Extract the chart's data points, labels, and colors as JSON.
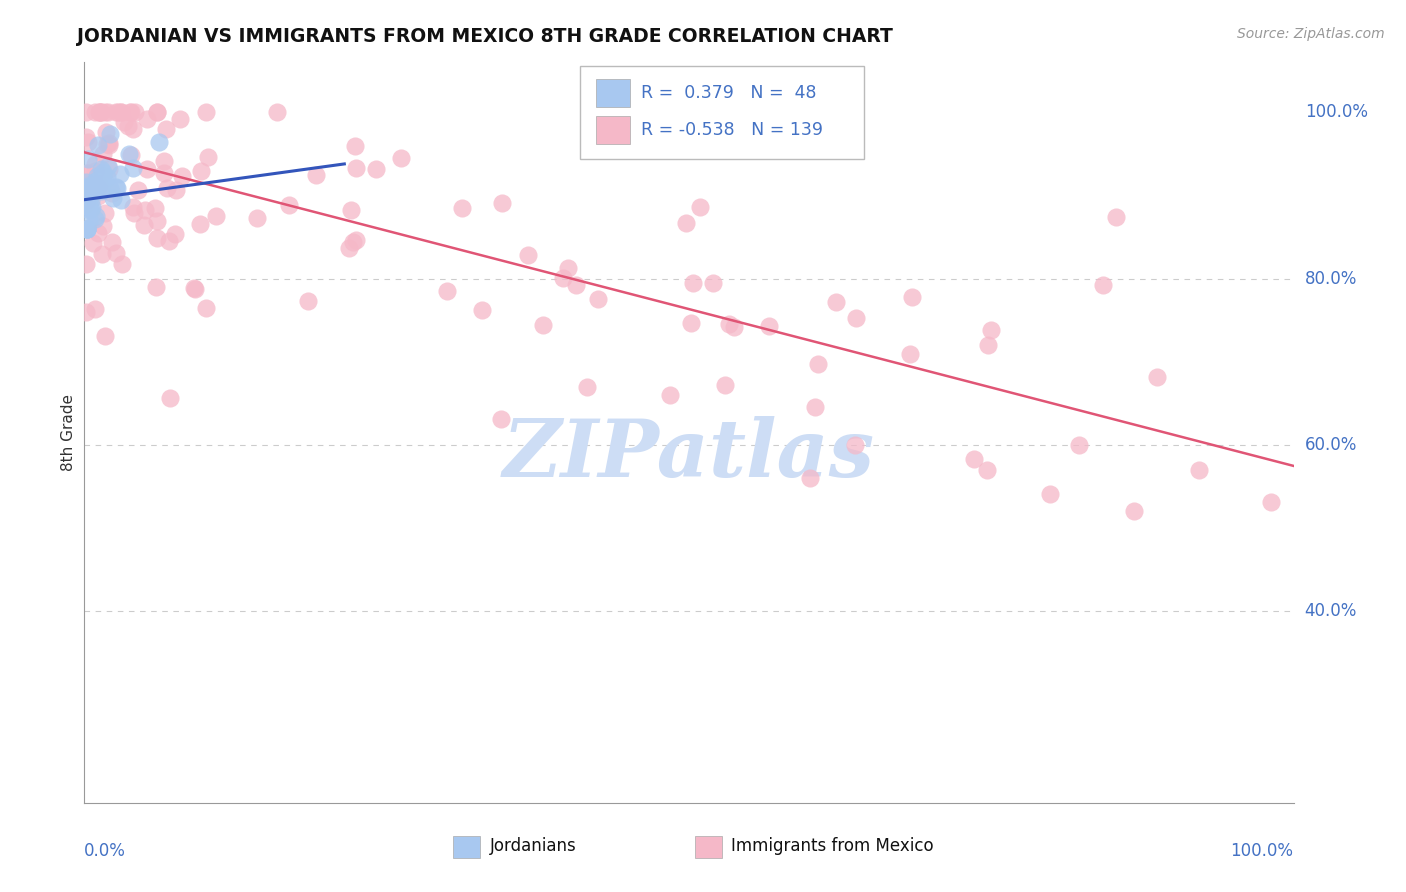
{
  "title": "JORDANIAN VS IMMIGRANTS FROM MEXICO 8TH GRADE CORRELATION CHART",
  "source": "Source: ZipAtlas.com",
  "ylabel": "8th Grade",
  "blue_r": 0.379,
  "blue_n": 48,
  "pink_r": -0.538,
  "pink_n": 139,
  "background_color": "#ffffff",
  "grid_color": "#cccccc",
  "blue_color": "#a8c8f0",
  "pink_color": "#f5b8c8",
  "blue_line_color": "#3355bb",
  "pink_line_color": "#e05575",
  "watermark": "ZIPatlas",
  "watermark_color": "#cdddf5",
  "xlim": [
    0.0,
    1.0
  ],
  "ylim": [
    0.17,
    1.06
  ],
  "ytick_positions": [
    1.0,
    0.8,
    0.6,
    0.4
  ],
  "ytick_labels": [
    "100.0%",
    "80.0%",
    "60.0%",
    "40.0%"
  ],
  "pink_line_x0": 0.0,
  "pink_line_y0": 0.952,
  "pink_line_x1": 1.0,
  "pink_line_y1": 0.575,
  "blue_line_x0": 0.0,
  "blue_line_y0": 0.895,
  "blue_line_x1": 0.215,
  "blue_line_y1": 0.938,
  "legend_R_blue": "R =  0.379",
  "legend_N_blue": "N =  48",
  "legend_R_pink": "R = -0.538",
  "legend_N_pink": "N = 139"
}
